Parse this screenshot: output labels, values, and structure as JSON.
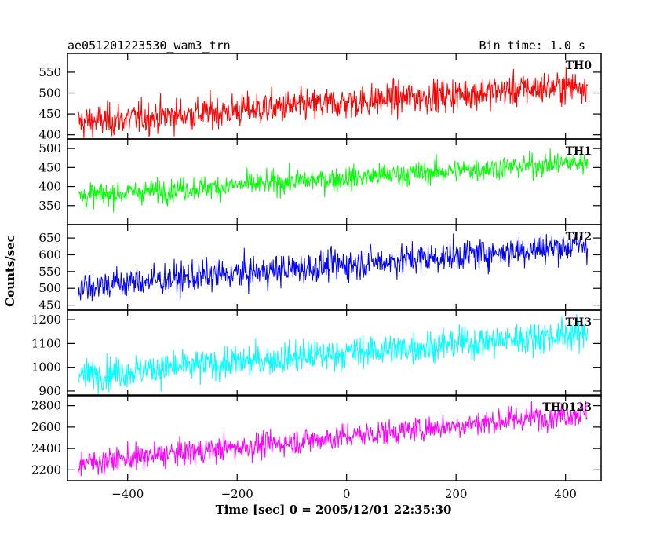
{
  "header": {
    "title": "ae051201223530_wam3_trn",
    "bin_time": "Bin time: 1.0 s"
  },
  "chart_data": {
    "type": "line",
    "title": "ae051201223530_wam3_trn",
    "subtitle": "Bin time: 1.0 s",
    "xlabel": "Time [sec] 0 = 2005/12/01 22:35:30",
    "ylabel": "Counts/sec",
    "xlim": [
      -510,
      465
    ],
    "x_range": [
      -490,
      440
    ],
    "x_bin": 1.0,
    "xticks": [
      -400,
      -200,
      0,
      200,
      400
    ],
    "xtick_labels": [
      "−400",
      "−200",
      "0",
      "200",
      "400"
    ],
    "panels": [
      {
        "name": "TH0",
        "color": "#ff0000",
        "ylim": [
          390,
          595
        ],
        "yticks": [
          400,
          450,
          500,
          550
        ],
        "ytick_labels": [
          "400",
          "450",
          "500",
          "550"
        ],
        "trend_start": 430,
        "trend_end": 520,
        "noise": 28
      },
      {
        "name": "TH1",
        "color": "#00ff00",
        "ylim": [
          300,
          525
        ],
        "yticks": [
          350,
          400,
          450,
          500
        ],
        "ytick_labels": [
          "350",
          "400",
          "450",
          "500"
        ],
        "trend_start": 375,
        "trend_end": 465,
        "noise": 22
      },
      {
        "name": "TH2",
        "color": "#0000ff",
        "ylim": [
          435,
          690
        ],
        "yticks": [
          450,
          500,
          550,
          600,
          650
        ],
        "ytick_labels": [
          "450",
          "500",
          "550",
          "600",
          "650"
        ],
        "trend_start": 505,
        "trend_end": 630,
        "noise": 33
      },
      {
        "name": "TH3",
        "color": "#00ffff",
        "ylim": [
          880,
          1240
        ],
        "yticks": [
          900,
          1000,
          1100,
          1200
        ],
        "ytick_labels": [
          "900",
          "1000",
          "1100",
          "1200"
        ],
        "trend_start": 965,
        "trend_end": 1145,
        "noise": 48
      },
      {
        "name": "TH0123",
        "color": "#ff00ff",
        "ylim": [
          2100,
          2900
        ],
        "yticks": [
          2200,
          2400,
          2600,
          2800
        ],
        "ytick_labels": [
          "2200",
          "2400",
          "2600",
          "2800"
        ],
        "trend_start": 2260,
        "trend_end": 2740,
        "noise": 85
      }
    ]
  }
}
